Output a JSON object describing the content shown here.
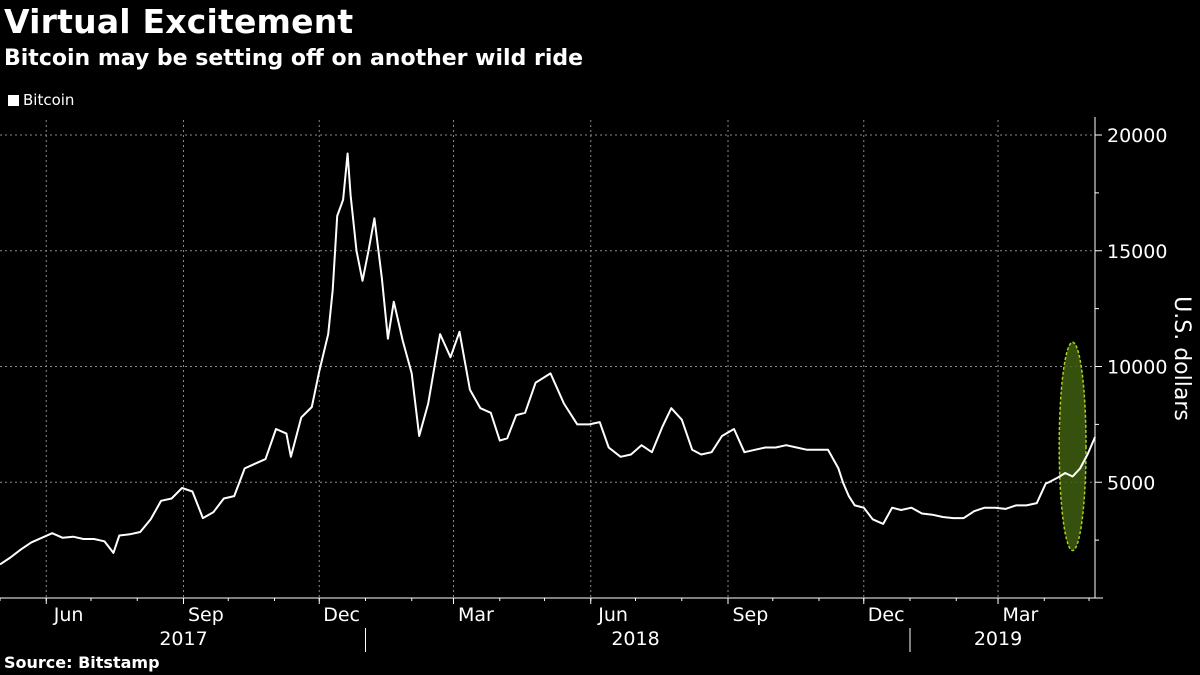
{
  "header": {
    "title": "Virtual Excitement",
    "subtitle": "Bitcoin may be setting off on another wild ride"
  },
  "footer": {
    "source": "Source: Bitstamp"
  },
  "colors": {
    "background": "#000000",
    "line": "#ffffff",
    "grid": "#8a8a8a",
    "highlight": "#3f5f0f",
    "highlight_outline": "#a8d020"
  },
  "chart_data": {
    "type": "line",
    "title": "Virtual Excitement",
    "subtitle": "Bitcoin may be setting off on another wild ride",
    "legend": {
      "placement": "top-left",
      "entries": [
        "Bitcoin"
      ]
    },
    "xlabel": "",
    "ylabel": "U.S. dollars",
    "ylim": [
      0,
      20000
    ],
    "yticks": [
      5000,
      10000,
      15000,
      20000
    ],
    "xlim": [
      "2017-05-01",
      "2019-05-05"
    ],
    "xticks": [
      {
        "date": "2017-06-01",
        "label": "Jun"
      },
      {
        "date": "2017-09-01",
        "label": "Sep"
      },
      {
        "date": "2017-12-01",
        "label": "Dec"
      },
      {
        "date": "2018-03-01",
        "label": "Mar"
      },
      {
        "date": "2018-06-01",
        "label": "Jun"
      },
      {
        "date": "2018-09-01",
        "label": "Sep"
      },
      {
        "date": "2018-12-01",
        "label": "Dec"
      },
      {
        "date": "2019-03-01",
        "label": "Mar"
      }
    ],
    "year_labels": [
      {
        "year": "2017",
        "center": "2017-09-01"
      },
      {
        "year": "2018",
        "center": "2018-07-01"
      },
      {
        "year": "2019",
        "center": "2019-03-01"
      }
    ],
    "year_separators": [
      "2018-01-01",
      "2019-01-01"
    ],
    "grid": true,
    "highlight": {
      "shape": "ellipse",
      "center_date": "2019-04-20",
      "center_value": 6550,
      "half_width_days": 9,
      "half_height_value": 4500
    },
    "series": [
      {
        "name": "Bitcoin",
        "x": [
          "2017-05-01",
          "2017-05-08",
          "2017-05-15",
          "2017-05-22",
          "2017-05-29",
          "2017-06-05",
          "2017-06-12",
          "2017-06-19",
          "2017-06-26",
          "2017-07-03",
          "2017-07-10",
          "2017-07-16",
          "2017-07-20",
          "2017-07-27",
          "2017-08-03",
          "2017-08-10",
          "2017-08-17",
          "2017-08-24",
          "2017-08-31",
          "2017-09-07",
          "2017-09-14",
          "2017-09-21",
          "2017-09-28",
          "2017-10-05",
          "2017-10-12",
          "2017-10-19",
          "2017-10-26",
          "2017-11-02",
          "2017-11-09",
          "2017-11-12",
          "2017-11-19",
          "2017-11-26",
          "2017-12-01",
          "2017-12-07",
          "2017-12-10",
          "2017-12-13",
          "2017-12-17",
          "2017-12-20",
          "2017-12-22",
          "2017-12-26",
          "2017-12-30",
          "2018-01-03",
          "2018-01-07",
          "2018-01-12",
          "2018-01-16",
          "2018-01-20",
          "2018-01-26",
          "2018-02-01",
          "2018-02-06",
          "2018-02-12",
          "2018-02-20",
          "2018-02-27",
          "2018-03-05",
          "2018-03-12",
          "2018-03-19",
          "2018-03-26",
          "2018-04-01",
          "2018-04-06",
          "2018-04-12",
          "2018-04-18",
          "2018-04-25",
          "2018-05-05",
          "2018-05-14",
          "2018-05-23",
          "2018-05-31",
          "2018-06-07",
          "2018-06-13",
          "2018-06-21",
          "2018-06-28",
          "2018-07-05",
          "2018-07-12",
          "2018-07-19",
          "2018-07-25",
          "2018-08-01",
          "2018-08-08",
          "2018-08-14",
          "2018-08-21",
          "2018-08-28",
          "2018-09-05",
          "2018-09-12",
          "2018-09-19",
          "2018-09-26",
          "2018-10-03",
          "2018-10-10",
          "2018-10-17",
          "2018-10-24",
          "2018-10-31",
          "2018-11-07",
          "2018-11-14",
          "2018-11-17",
          "2018-11-21",
          "2018-11-25",
          "2018-12-01",
          "2018-12-07",
          "2018-12-14",
          "2018-12-20",
          "2018-12-26",
          "2019-01-02",
          "2019-01-09",
          "2019-01-16",
          "2019-01-23",
          "2019-01-30",
          "2019-02-06",
          "2019-02-13",
          "2019-02-20",
          "2019-02-27",
          "2019-03-06",
          "2019-03-13",
          "2019-03-20",
          "2019-03-27",
          "2019-04-02",
          "2019-04-04",
          "2019-04-10",
          "2019-04-15",
          "2019-04-20",
          "2019-04-25",
          "2019-04-30",
          "2019-05-05"
        ],
        "values": [
          1450,
          1750,
          2100,
          2400,
          2600,
          2800,
          2600,
          2650,
          2550,
          2550,
          2450,
          1950,
          2700,
          2750,
          2850,
          3400,
          4200,
          4300,
          4750,
          4600,
          3450,
          3700,
          4300,
          4400,
          5600,
          5800,
          6000,
          7300,
          7100,
          6100,
          7800,
          8250,
          9800,
          11400,
          13300,
          16500,
          17200,
          19200,
          17400,
          15000,
          13700,
          15000,
          16400,
          13800,
          11200,
          12800,
          11100,
          9700,
          7000,
          8400,
          11400,
          10400,
          11500,
          9000,
          8200,
          8000,
          6800,
          6900,
          7900,
          8000,
          9300,
          9700,
          8400,
          7500,
          7500,
          7600,
          6500,
          6100,
          6200,
          6600,
          6300,
          7400,
          8200,
          7700,
          6400,
          6200,
          6300,
          7000,
          7300,
          6300,
          6400,
          6500,
          6500,
          6600,
          6500,
          6400,
          6400,
          6400,
          5600,
          5000,
          4400,
          4000,
          3900,
          3400,
          3200,
          3900,
          3800,
          3900,
          3650,
          3600,
          3500,
          3450,
          3450,
          3750,
          3900,
          3900,
          3850,
          4000,
          4000,
          4100,
          4950,
          5000,
          5200,
          5400,
          5250,
          5600,
          6200,
          6950
        ]
      }
    ]
  }
}
